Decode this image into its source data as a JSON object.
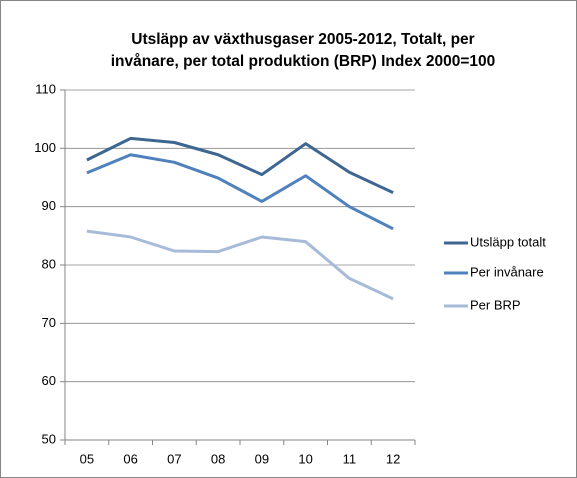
{
  "chart_data": {
    "type": "line",
    "title": [
      "Utsläpp av växthusgaser 2005-2012, Totalt, per",
      "invånare, per total produktion (BRP) Index 2000=100"
    ],
    "categories": [
      "05",
      "06",
      "07",
      "08",
      "09",
      "10",
      "11",
      "12"
    ],
    "series": [
      {
        "name": "Utsläpp totalt",
        "color": "#3f6690",
        "values": [
          98.0,
          101.7,
          101.0,
          98.9,
          95.5,
          100.8,
          95.9,
          92.4
        ]
      },
      {
        "name": "Per invånare",
        "color": "#4f81bd",
        "values": [
          95.8,
          98.9,
          97.6,
          94.9,
          90.9,
          95.3,
          90.0,
          86.2
        ]
      },
      {
        "name": "Per BRP",
        "color": "#a7bbd9",
        "values": [
          85.8,
          84.8,
          82.4,
          82.3,
          84.8,
          84.0,
          77.7,
          74.2
        ]
      }
    ],
    "ylim": [
      50,
      110
    ],
    "yticks": [
      50,
      60,
      70,
      80,
      90,
      100,
      110
    ],
    "grid": true,
    "legend": "right"
  }
}
